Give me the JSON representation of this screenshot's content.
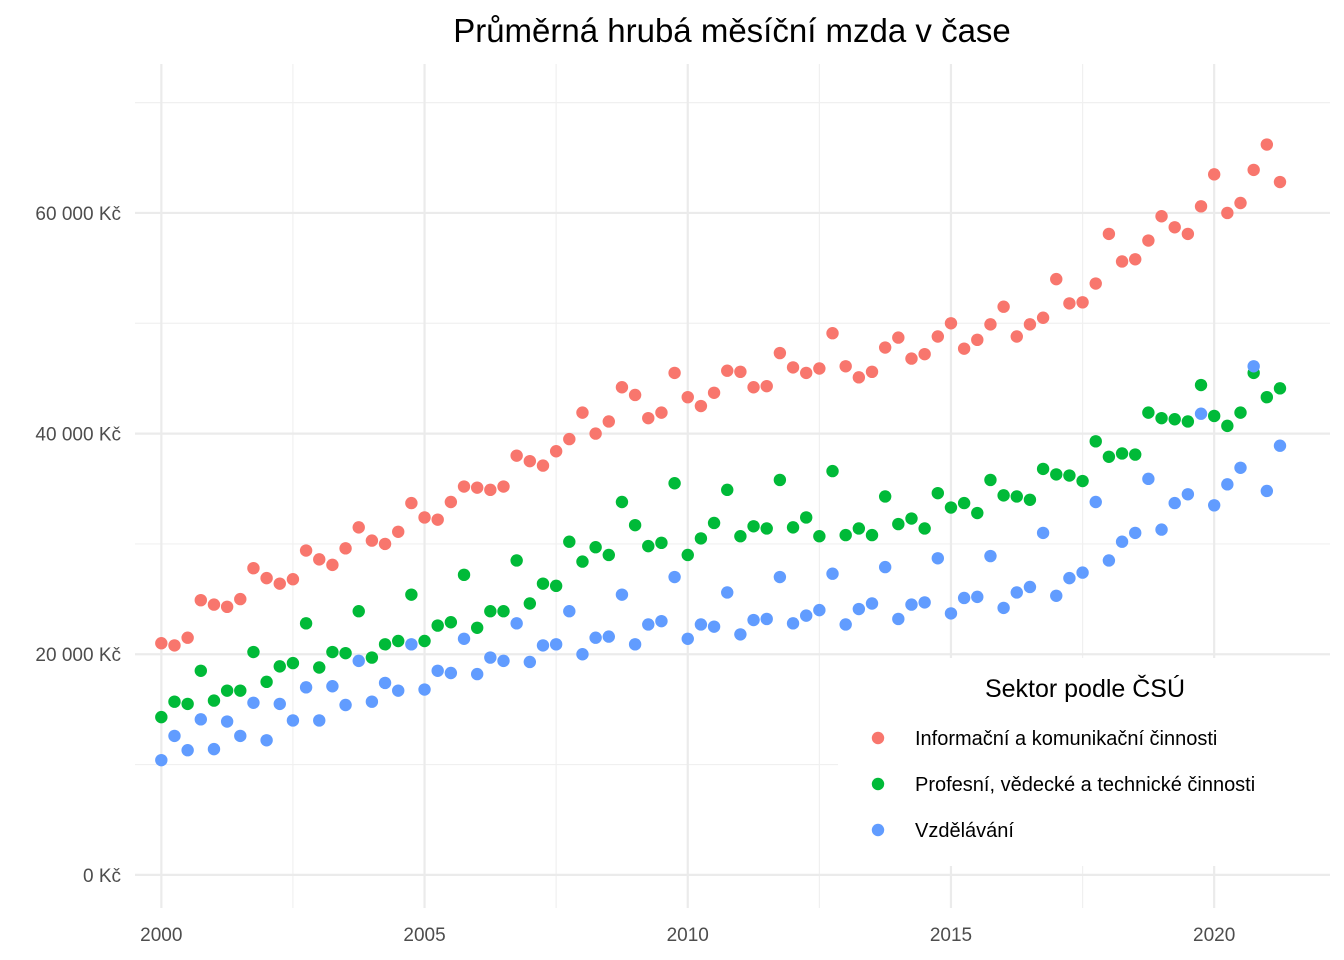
{
  "chart_data": {
    "type": "scatter",
    "title": "Průměrná hrubá měsíční mzda v čase",
    "xlabel": "",
    "ylabel": "",
    "xlim": [
      1999.5,
      2022.2
    ],
    "ylim": [
      -3000,
      73500
    ],
    "x_ticks": [
      2000,
      2005,
      2010,
      2015,
      2020
    ],
    "x_tick_labels": [
      "2000",
      "2005",
      "2010",
      "2015",
      "2020"
    ],
    "y_ticks": [
      0,
      20000,
      40000,
      60000
    ],
    "y_tick_labels": [
      "0 Kč",
      "20 000 Kč",
      "40 000 Kč",
      "60 000 Kč"
    ],
    "grid": true,
    "legend": {
      "title": "Sektor podle ČSÚ",
      "placement": "bottom-right"
    },
    "series": [
      {
        "name": "Informační a komunikační činnosti",
        "color": "#f8766d",
        "points": [
          [
            2000.0,
            21000
          ],
          [
            2000.25,
            20800
          ],
          [
            2000.5,
            21500
          ],
          [
            2000.75,
            24900
          ],
          [
            2001.0,
            24500
          ],
          [
            2001.25,
            24300
          ],
          [
            2001.5,
            25000
          ],
          [
            2001.75,
            27800
          ],
          [
            2002.0,
            26900
          ],
          [
            2002.25,
            26400
          ],
          [
            2002.5,
            26800
          ],
          [
            2002.75,
            29400
          ],
          [
            2003.0,
            28600
          ],
          [
            2003.25,
            28100
          ],
          [
            2003.5,
            29600
          ],
          [
            2003.75,
            31500
          ],
          [
            2004.0,
            30300
          ],
          [
            2004.25,
            30000
          ],
          [
            2004.5,
            31100
          ],
          [
            2004.75,
            33700
          ],
          [
            2005.0,
            32400
          ],
          [
            2005.25,
            32200
          ],
          [
            2005.5,
            33800
          ],
          [
            2005.75,
            35200
          ],
          [
            2006.0,
            35100
          ],
          [
            2006.25,
            34900
          ],
          [
            2006.5,
            35200
          ],
          [
            2006.75,
            38000
          ],
          [
            2007.0,
            37500
          ],
          [
            2007.25,
            37100
          ],
          [
            2007.5,
            38400
          ],
          [
            2007.75,
            39500
          ],
          [
            2008.0,
            41900
          ],
          [
            2008.25,
            40000
          ],
          [
            2008.5,
            41100
          ],
          [
            2008.75,
            44200
          ],
          [
            2009.0,
            43500
          ],
          [
            2009.25,
            41400
          ],
          [
            2009.5,
            41900
          ],
          [
            2009.75,
            45500
          ],
          [
            2010.0,
            43300
          ],
          [
            2010.25,
            42500
          ],
          [
            2010.5,
            43700
          ],
          [
            2010.75,
            45700
          ],
          [
            2011.0,
            45600
          ],
          [
            2011.25,
            44200
          ],
          [
            2011.5,
            44300
          ],
          [
            2011.75,
            47300
          ],
          [
            2012.0,
            46000
          ],
          [
            2012.25,
            45500
          ],
          [
            2012.5,
            45900
          ],
          [
            2012.75,
            49100
          ],
          [
            2013.0,
            46100
          ],
          [
            2013.25,
            45100
          ],
          [
            2013.5,
            45600
          ],
          [
            2013.75,
            47800
          ],
          [
            2014.0,
            48700
          ],
          [
            2014.25,
            46800
          ],
          [
            2014.5,
            47200
          ],
          [
            2014.75,
            48800
          ],
          [
            2015.0,
            50000
          ],
          [
            2015.25,
            47700
          ],
          [
            2015.5,
            48500
          ],
          [
            2015.75,
            49900
          ],
          [
            2016.0,
            51500
          ],
          [
            2016.25,
            48800
          ],
          [
            2016.5,
            49900
          ],
          [
            2016.75,
            50500
          ],
          [
            2017.0,
            54000
          ],
          [
            2017.25,
            51800
          ],
          [
            2017.5,
            51900
          ],
          [
            2017.75,
            53600
          ],
          [
            2018.0,
            58100
          ],
          [
            2018.25,
            55600
          ],
          [
            2018.5,
            55800
          ],
          [
            2018.75,
            57500
          ],
          [
            2019.0,
            59700
          ],
          [
            2019.25,
            58700
          ],
          [
            2019.5,
            58100
          ],
          [
            2019.75,
            60600
          ],
          [
            2020.0,
            63500
          ],
          [
            2020.25,
            60000
          ],
          [
            2020.5,
            60900
          ],
          [
            2020.75,
            63900
          ],
          [
            2021.0,
            66200
          ],
          [
            2021.25,
            62800
          ]
        ]
      },
      {
        "name": "Profesní, vědecké a technické činnosti",
        "color": "#00ba38",
        "points": [
          [
            2000.0,
            14300
          ],
          [
            2000.25,
            15700
          ],
          [
            2000.5,
            15500
          ],
          [
            2000.75,
            18500
          ],
          [
            2001.0,
            15800
          ],
          [
            2001.25,
            16700
          ],
          [
            2001.5,
            16700
          ],
          [
            2001.75,
            20200
          ],
          [
            2002.0,
            17500
          ],
          [
            2002.25,
            18900
          ],
          [
            2002.5,
            19200
          ],
          [
            2002.75,
            22800
          ],
          [
            2003.0,
            18800
          ],
          [
            2003.25,
            20200
          ],
          [
            2003.5,
            20100
          ],
          [
            2003.75,
            23900
          ],
          [
            2004.0,
            19700
          ],
          [
            2004.25,
            20900
          ],
          [
            2004.5,
            21200
          ],
          [
            2004.75,
            25400
          ],
          [
            2005.0,
            21200
          ],
          [
            2005.25,
            22600
          ],
          [
            2005.5,
            22900
          ],
          [
            2005.75,
            27200
          ],
          [
            2006.0,
            22400
          ],
          [
            2006.25,
            23900
          ],
          [
            2006.5,
            23900
          ],
          [
            2006.75,
            28500
          ],
          [
            2007.0,
            24600
          ],
          [
            2007.25,
            26400
          ],
          [
            2007.5,
            26200
          ],
          [
            2007.75,
            30200
          ],
          [
            2008.0,
            28400
          ],
          [
            2008.25,
            29700
          ],
          [
            2008.5,
            29000
          ],
          [
            2008.75,
            33800
          ],
          [
            2009.0,
            31700
          ],
          [
            2009.25,
            29800
          ],
          [
            2009.5,
            30100
          ],
          [
            2009.75,
            35500
          ],
          [
            2010.0,
            29000
          ],
          [
            2010.25,
            30500
          ],
          [
            2010.5,
            31900
          ],
          [
            2010.75,
            34900
          ],
          [
            2011.0,
            30700
          ],
          [
            2011.25,
            31600
          ],
          [
            2011.5,
            31400
          ],
          [
            2011.75,
            35800
          ],
          [
            2012.0,
            31500
          ],
          [
            2012.25,
            32400
          ],
          [
            2012.5,
            30700
          ],
          [
            2012.75,
            36600
          ],
          [
            2013.0,
            30800
          ],
          [
            2013.25,
            31400
          ],
          [
            2013.5,
            30800
          ],
          [
            2013.75,
            34300
          ],
          [
            2014.0,
            31800
          ],
          [
            2014.25,
            32300
          ],
          [
            2014.5,
            31400
          ],
          [
            2014.75,
            34600
          ],
          [
            2015.0,
            33300
          ],
          [
            2015.25,
            33700
          ],
          [
            2015.5,
            32800
          ],
          [
            2015.75,
            35800
          ],
          [
            2016.0,
            34400
          ],
          [
            2016.25,
            34300
          ],
          [
            2016.5,
            34000
          ],
          [
            2016.75,
            36800
          ],
          [
            2017.0,
            36300
          ],
          [
            2017.25,
            36200
          ],
          [
            2017.5,
            35700
          ],
          [
            2017.75,
            39300
          ],
          [
            2018.0,
            37900
          ],
          [
            2018.25,
            38200
          ],
          [
            2018.5,
            38100
          ],
          [
            2018.75,
            41900
          ],
          [
            2019.0,
            41400
          ],
          [
            2019.25,
            41300
          ],
          [
            2019.5,
            41100
          ],
          [
            2019.75,
            44400
          ],
          [
            2020.0,
            41600
          ],
          [
            2020.25,
            40700
          ],
          [
            2020.5,
            41900
          ],
          [
            2020.75,
            45500
          ],
          [
            2021.0,
            43300
          ],
          [
            2021.25,
            44100
          ]
        ]
      },
      {
        "name": "Vzdělávání",
        "color": "#619cff",
        "points": [
          [
            2000.0,
            10400
          ],
          [
            2000.25,
            12600
          ],
          [
            2000.5,
            11300
          ],
          [
            2000.75,
            14100
          ],
          [
            2001.0,
            11400
          ],
          [
            2001.25,
            13900
          ],
          [
            2001.5,
            12600
          ],
          [
            2001.75,
            15600
          ],
          [
            2002.0,
            12200
          ],
          [
            2002.25,
            15500
          ],
          [
            2002.5,
            14000
          ],
          [
            2002.75,
            17000
          ],
          [
            2003.0,
            14000
          ],
          [
            2003.25,
            17100
          ],
          [
            2003.5,
            15400
          ],
          [
            2003.75,
            19400
          ],
          [
            2004.0,
            15700
          ],
          [
            2004.25,
            17400
          ],
          [
            2004.5,
            16700
          ],
          [
            2004.75,
            20900
          ],
          [
            2005.0,
            16800
          ],
          [
            2005.25,
            18500
          ],
          [
            2005.5,
            18300
          ],
          [
            2005.75,
            21400
          ],
          [
            2006.0,
            18200
          ],
          [
            2006.25,
            19700
          ],
          [
            2006.5,
            19400
          ],
          [
            2006.75,
            22800
          ],
          [
            2007.0,
            19300
          ],
          [
            2007.25,
            20800
          ],
          [
            2007.5,
            20900
          ],
          [
            2007.75,
            23900
          ],
          [
            2008.0,
            20000
          ],
          [
            2008.25,
            21500
          ],
          [
            2008.5,
            21600
          ],
          [
            2008.75,
            25400
          ],
          [
            2009.0,
            20900
          ],
          [
            2009.25,
            22700
          ],
          [
            2009.5,
            23000
          ],
          [
            2009.75,
            27000
          ],
          [
            2010.0,
            21400
          ],
          [
            2010.25,
            22700
          ],
          [
            2010.5,
            22500
          ],
          [
            2010.75,
            25600
          ],
          [
            2011.0,
            21800
          ],
          [
            2011.25,
            23100
          ],
          [
            2011.5,
            23200
          ],
          [
            2011.75,
            27000
          ],
          [
            2012.0,
            22800
          ],
          [
            2012.25,
            23500
          ],
          [
            2012.5,
            24000
          ],
          [
            2012.75,
            27300
          ],
          [
            2013.0,
            22700
          ],
          [
            2013.25,
            24100
          ],
          [
            2013.5,
            24600
          ],
          [
            2013.75,
            27900
          ],
          [
            2014.0,
            23200
          ],
          [
            2014.25,
            24500
          ],
          [
            2014.5,
            24700
          ],
          [
            2014.75,
            28700
          ],
          [
            2015.0,
            23700
          ],
          [
            2015.25,
            25100
          ],
          [
            2015.5,
            25200
          ],
          [
            2015.75,
            28900
          ],
          [
            2016.0,
            24200
          ],
          [
            2016.25,
            25600
          ],
          [
            2016.5,
            26100
          ],
          [
            2016.75,
            31000
          ],
          [
            2017.0,
            25300
          ],
          [
            2017.25,
            26900
          ],
          [
            2017.5,
            27400
          ],
          [
            2017.75,
            33800
          ],
          [
            2018.0,
            28500
          ],
          [
            2018.25,
            30200
          ],
          [
            2018.5,
            31000
          ],
          [
            2018.75,
            35900
          ],
          [
            2019.0,
            31300
          ],
          [
            2019.25,
            33700
          ],
          [
            2019.5,
            34500
          ],
          [
            2019.75,
            41800
          ],
          [
            2020.0,
            33500
          ],
          [
            2020.25,
            35400
          ],
          [
            2020.5,
            36900
          ],
          [
            2020.75,
            46100
          ],
          [
            2021.0,
            34800
          ],
          [
            2021.25,
            38900
          ]
        ]
      }
    ]
  }
}
